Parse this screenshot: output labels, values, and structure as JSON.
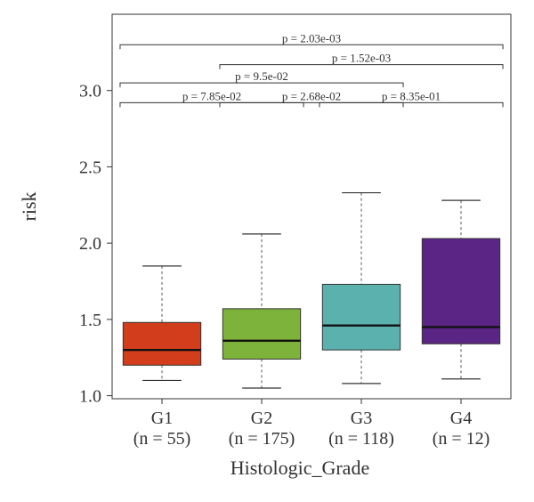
{
  "chart_data": {
    "type": "box",
    "xlabel": "Histologic_Grade",
    "ylabel": "risk",
    "ylim": [
      0.98,
      3.5
    ],
    "yticks": [
      1.0,
      1.5,
      2.0,
      2.5,
      3.0
    ],
    "ytick_labels": [
      "1.0",
      "1.5",
      "2.0",
      "2.5",
      "3.0"
    ],
    "grid": false,
    "groups": [
      {
        "label": "G1",
        "count_label": "(n = 55)",
        "color": "#d23d1c",
        "whisker_low": 1.1,
        "q1": 1.2,
        "median": 1.3,
        "q3": 1.48,
        "whisker_high": 1.85
      },
      {
        "label": "G2",
        "count_label": "(n = 175)",
        "color": "#7db33a",
        "whisker_low": 1.05,
        "q1": 1.24,
        "median": 1.36,
        "q3": 1.57,
        "whisker_high": 2.06
      },
      {
        "label": "G3",
        "count_label": "(n = 118)",
        "color": "#5bb1ae",
        "whisker_low": 1.08,
        "q1": 1.3,
        "median": 1.46,
        "q3": 1.73,
        "whisker_high": 2.33
      },
      {
        "label": "G4",
        "count_label": "(n = 12)",
        "color": "#5b2585",
        "whisker_low": 1.11,
        "q1": 1.34,
        "median": 1.45,
        "q3": 2.03,
        "whisker_high": 2.28
      }
    ],
    "comparisons": [
      {
        "from": 0,
        "to": 1,
        "level": 2.92,
        "label": "p = 7.85e-02"
      },
      {
        "from": 1,
        "to": 2,
        "level": 2.92,
        "label": "p = 2.68e-02"
      },
      {
        "from": 2,
        "to": 3,
        "level": 2.92,
        "label": "p = 8.35e-01"
      },
      {
        "from": 0,
        "to": 2,
        "level": 3.05,
        "label": "p = 9.5e-02"
      },
      {
        "from": 1,
        "to": 3,
        "level": 3.17,
        "label": "p = 1.52e-03"
      },
      {
        "from": 0,
        "to": 3,
        "level": 3.3,
        "label": "p = 2.03e-03"
      }
    ]
  }
}
